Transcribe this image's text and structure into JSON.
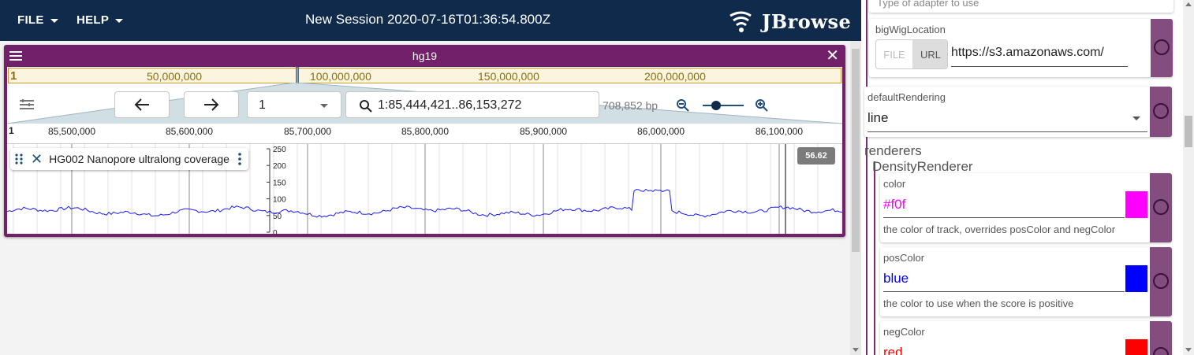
{
  "appbar": {
    "file_label": "FILE",
    "help_label": "HELP",
    "session_title": "New Session 2020-07-16T01:36:54.800Z",
    "logo_text": "JBrowse"
  },
  "view": {
    "title": "hg19",
    "overview": {
      "chrom": "1",
      "labels": [
        "50,000,000",
        "100,000,000",
        "150,000,000",
        "200,000,000"
      ]
    },
    "toolbar": {
      "assembly_select": "1",
      "location": "1:85,444,421..86,153,272",
      "span": "708,852 bp"
    },
    "ruler": {
      "chrom": "1",
      "ticks": [
        "85,500,000",
        "85,600,000",
        "85,700,000",
        "85,800,000",
        "85,900,000",
        "86,000,000",
        "86,100,000"
      ]
    },
    "track": {
      "name": "HG002 Nanopore ultralong coverage",
      "y_ticks": [
        "250",
        "200",
        "150",
        "100",
        "50",
        "0"
      ],
      "score_badge": "56.62"
    }
  },
  "config": {
    "type_placeholder": "Type of adapter to use",
    "bigwig": {
      "label": "bigWigLocation",
      "file_toggle": "FILE",
      "url_toggle": "URL",
      "value": "https://s3.amazonaws.com/"
    },
    "default_rendering": {
      "label": "defaultRendering",
      "value": "line"
    },
    "renderers_heading": "renderers",
    "density_heading": "DensityRenderer",
    "color": {
      "label": "color",
      "value": "#f0f",
      "description": "the color of track, overrides posColor and negColor",
      "swatch": "#ff00ff"
    },
    "pos_color": {
      "label": "posColor",
      "value": "blue",
      "description": "the color to use when the score is positive",
      "swatch": "#0000ff"
    },
    "neg_color": {
      "label": "negColor",
      "value": "red",
      "swatch": "#ff0000"
    }
  },
  "colors": {
    "appbar": "#0f2a4a",
    "view_frame": "#73206b",
    "line": "#1a1aff"
  }
}
